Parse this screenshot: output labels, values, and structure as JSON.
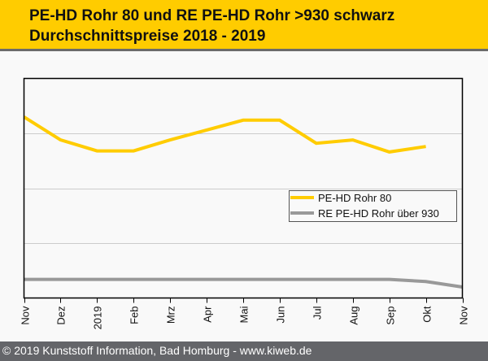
{
  "title": {
    "line1": "PE-HD Rohr 80 und RE PE-HD Rohr >930 schwarz",
    "line2": "Durchschnittspreise 2018 - 2019"
  },
  "footer": {
    "text": "© 2019 Kunststoff Information, Bad Homburg - www.kiweb.de"
  },
  "colors": {
    "title_bg": "#ffcc00",
    "footer_bg": "#646569",
    "series1": "#ffcc00",
    "series2": "#999999",
    "grid": "#cccccc"
  },
  "chart_data": {
    "type": "line",
    "title": "PE-HD Rohr 80 und RE PE-HD Rohr >930 schwarz — Durchschnittspreise 2018 - 2019",
    "xlabel": "",
    "ylabel": "",
    "categories": [
      "Nov",
      "Dez",
      "2019",
      "Feb",
      "Mrz",
      "Apr",
      "Mai",
      "Jun",
      "Jul",
      "Aug",
      "Sep",
      "Okt",
      "Nov"
    ],
    "ylim": [
      0,
      200
    ],
    "y_gridlines": [
      50,
      100,
      150
    ],
    "y_tick_labels_visible": false,
    "grid": true,
    "legend_position": "center-right",
    "series": [
      {
        "name": "PE-HD Rohr 80",
        "color": "#ffcc00",
        "values": [
          165,
          144,
          134,
          134,
          144,
          153,
          162,
          162,
          141,
          144,
          133,
          138,
          null
        ]
      },
      {
        "name": "RE PE-HD Rohr über 930",
        "color": "#999999",
        "values": [
          17,
          17,
          17,
          17,
          17,
          17,
          17,
          17,
          17,
          17,
          17,
          15,
          10
        ]
      }
    ]
  }
}
